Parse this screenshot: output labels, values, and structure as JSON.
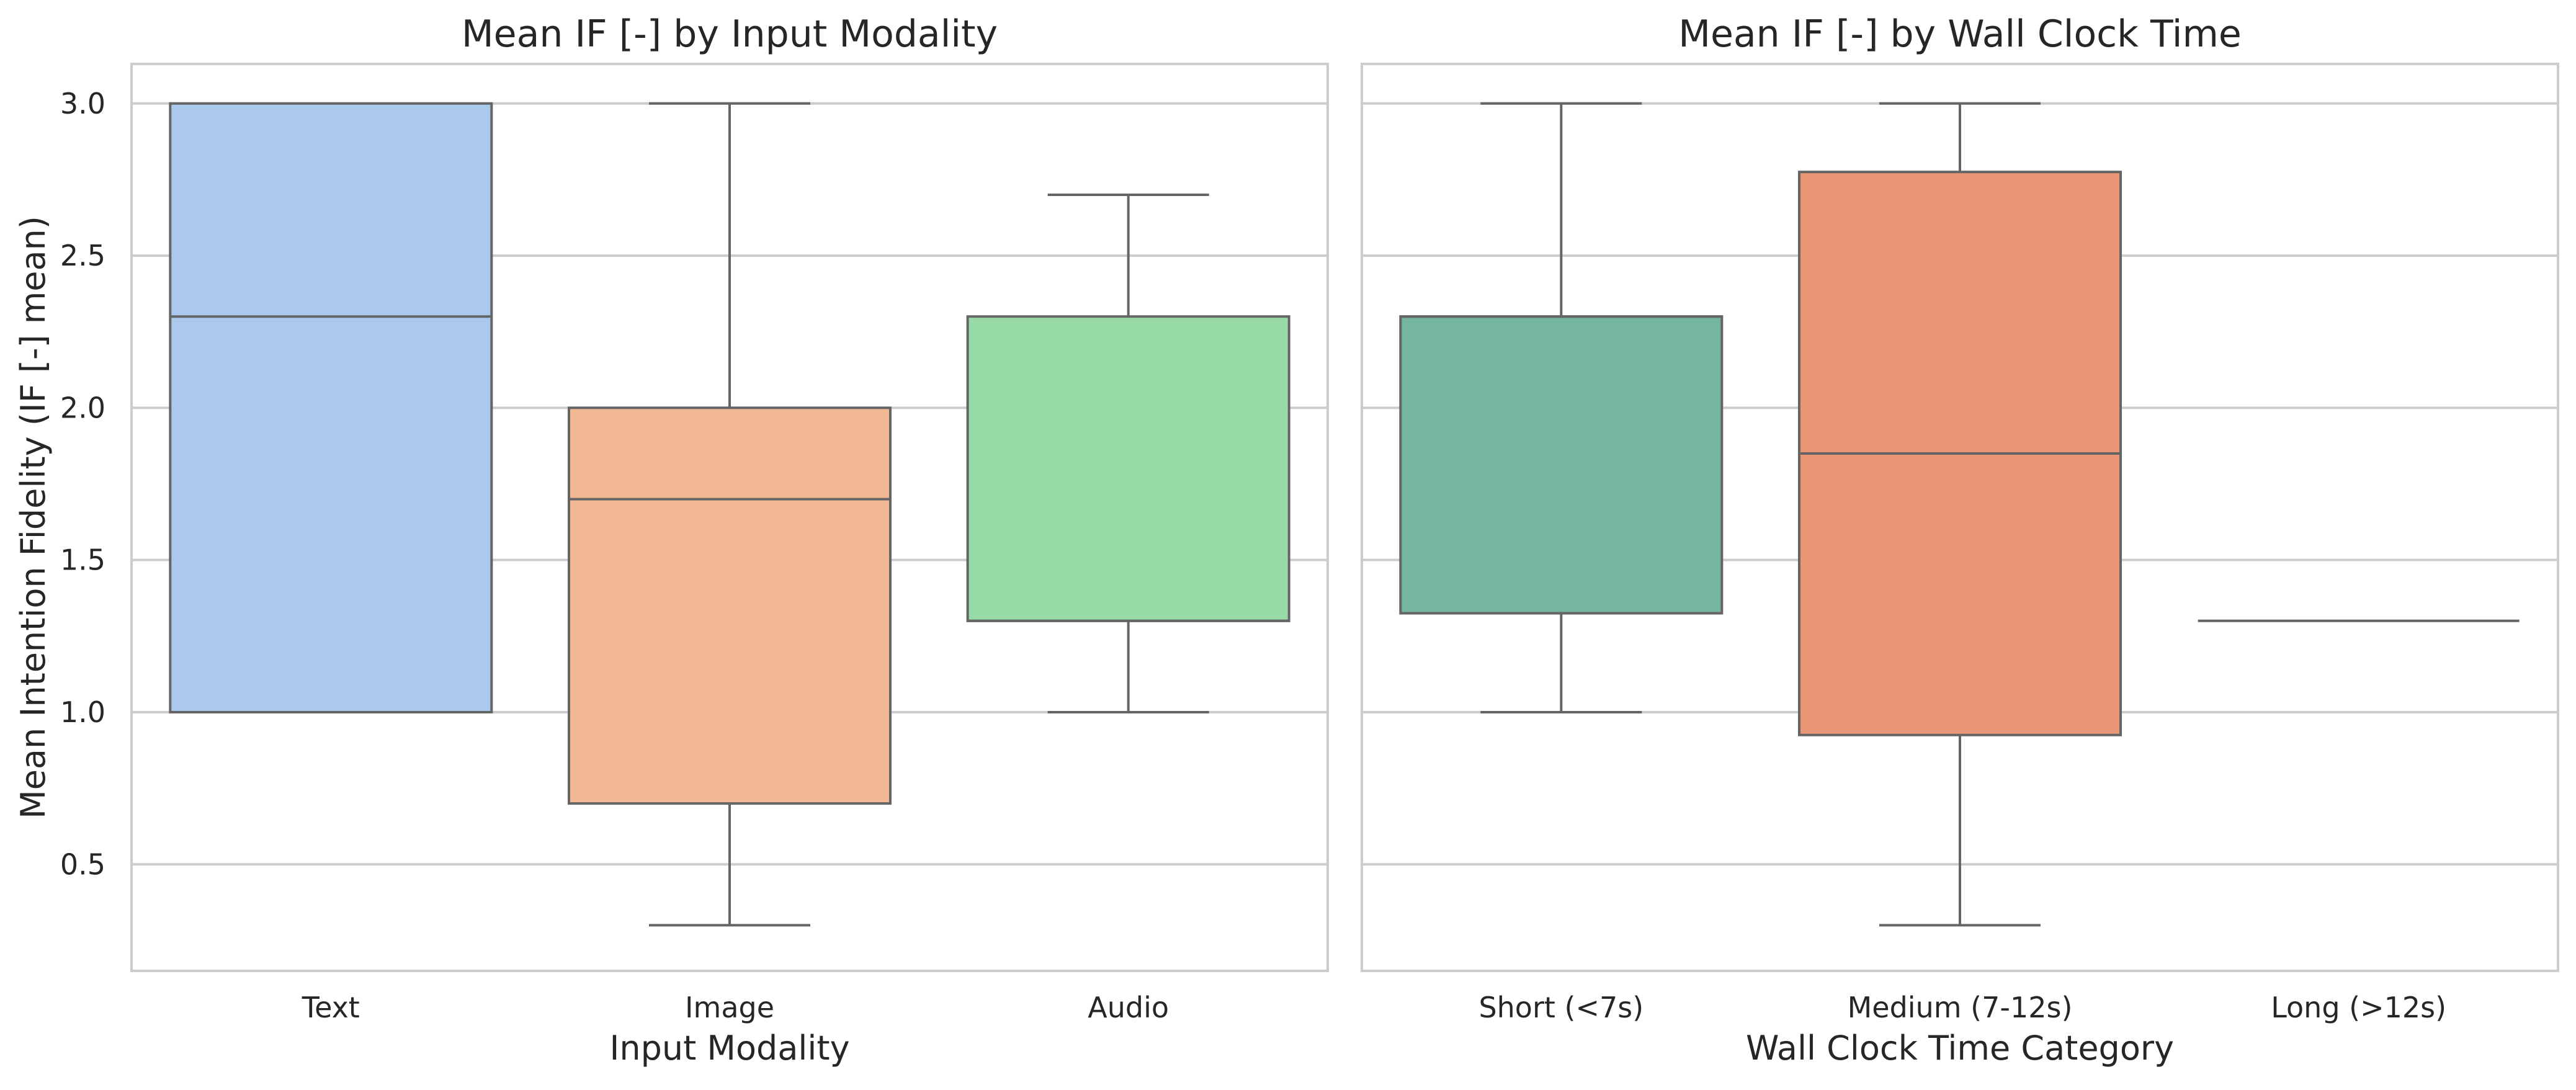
{
  "chart_data": [
    {
      "type": "box",
      "title": "Mean IF [-] by Input Modality",
      "xlabel": "Input Modality",
      "ylabel": "Mean Intention Fidelity (IF [-] mean)",
      "ylim": [
        0.15,
        3.13
      ],
      "yticks": [
        "0.5",
        "1.0",
        "1.5",
        "2.0",
        "2.5",
        "3.0"
      ],
      "grid": "horizontal",
      "categories": [
        "Text",
        "Image",
        "Audio"
      ],
      "boxes": [
        {
          "category": "Text",
          "whisker_low": 1.0,
          "q1": 1.0,
          "median": 2.3,
          "q3": 3.0,
          "whisker_high": 3.0,
          "color": "#abc9ed"
        },
        {
          "category": "Image",
          "whisker_low": 0.3,
          "q1": 0.7,
          "median": 1.7,
          "q3": 2.0,
          "whisker_high": 3.0,
          "color": "#f1b893"
        },
        {
          "category": "Audio",
          "whisker_low": 1.0,
          "q1": 1.3,
          "median": 1.3,
          "q3": 2.3,
          "whisker_high": 2.7,
          "color": "#98dba8"
        }
      ]
    },
    {
      "type": "box",
      "title": "Mean IF [-] by Wall Clock Time",
      "xlabel": "Wall Clock Time Category",
      "ylabel": "",
      "ylim": [
        0.15,
        3.13
      ],
      "grid": "horizontal",
      "categories": [
        "Short (<7s)",
        "Medium (7-12s)",
        "Long (>12s)"
      ],
      "boxes": [
        {
          "category": "Short (<7s)",
          "whisker_low": 1.0,
          "q1": 1.325,
          "median": 2.3,
          "q3": 2.3,
          "whisker_high": 3.0,
          "color": "#74b6a2"
        },
        {
          "category": "Medium (7-12s)",
          "whisker_low": 0.3,
          "q1": 0.925,
          "median": 1.85,
          "q3": 2.775,
          "whisker_high": 3.0,
          "color": "#e89675"
        },
        {
          "category": "Long (>12s)",
          "whisker_low": 1.3,
          "q1": 1.3,
          "median": 1.3,
          "q3": 1.3,
          "whisker_high": 1.3,
          "color": "#e89675"
        }
      ]
    }
  ]
}
